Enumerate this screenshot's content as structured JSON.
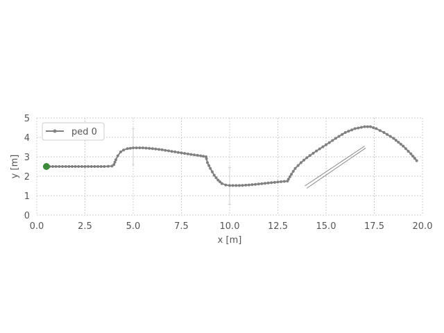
{
  "chart_data": {
    "type": "line",
    "title": "",
    "xlabel": "x [m]",
    "ylabel": "y [m]",
    "xlim": [
      0.0,
      20.0
    ],
    "ylim": [
      0,
      5
    ],
    "xticks": [
      "0.0",
      "2.5",
      "5.0",
      "7.5",
      "10.0",
      "12.5",
      "15.0",
      "17.5",
      "20.0"
    ],
    "yticks": [
      "0",
      "1",
      "2",
      "3",
      "4",
      "5"
    ],
    "grid": true,
    "legend_position": "top-left",
    "colors": {
      "series": "#808080",
      "start_marker": "#3a8c3a",
      "grid": "#cccccc",
      "obstacle": "#888888"
    },
    "series": [
      {
        "name": "ped 0",
        "color": "#808080",
        "points": [
          [
            0.5,
            2.5
          ],
          [
            1.0,
            2.5
          ],
          [
            1.5,
            2.5
          ],
          [
            2.0,
            2.5
          ],
          [
            2.5,
            2.5
          ],
          [
            3.0,
            2.5
          ],
          [
            3.5,
            2.5
          ],
          [
            3.9,
            2.52
          ],
          [
            4.0,
            2.6
          ],
          [
            4.1,
            2.85
          ],
          [
            4.2,
            3.05
          ],
          [
            4.35,
            3.25
          ],
          [
            4.5,
            3.35
          ],
          [
            4.7,
            3.42
          ],
          [
            5.0,
            3.46
          ],
          [
            5.5,
            3.46
          ],
          [
            6.0,
            3.42
          ],
          [
            6.5,
            3.36
          ],
          [
            7.0,
            3.28
          ],
          [
            7.5,
            3.2
          ],
          [
            8.0,
            3.12
          ],
          [
            8.5,
            3.05
          ],
          [
            8.78,
            3.0
          ],
          [
            8.8,
            2.9
          ],
          [
            8.85,
            2.7
          ],
          [
            9.0,
            2.4
          ],
          [
            9.2,
            2.05
          ],
          [
            9.4,
            1.8
          ],
          [
            9.6,
            1.62
          ],
          [
            9.8,
            1.55
          ],
          [
            10.0,
            1.52
          ],
          [
            10.5,
            1.52
          ],
          [
            11.0,
            1.55
          ],
          [
            11.5,
            1.6
          ],
          [
            12.0,
            1.65
          ],
          [
            12.5,
            1.7
          ],
          [
            13.0,
            1.75
          ],
          [
            13.05,
            1.85
          ],
          [
            13.2,
            2.1
          ],
          [
            13.4,
            2.4
          ],
          [
            13.7,
            2.7
          ],
          [
            14.0,
            2.95
          ],
          [
            14.5,
            3.3
          ],
          [
            15.0,
            3.62
          ],
          [
            15.5,
            3.95
          ],
          [
            16.0,
            4.25
          ],
          [
            16.5,
            4.45
          ],
          [
            17.0,
            4.55
          ],
          [
            17.3,
            4.55
          ],
          [
            17.6,
            4.45
          ],
          [
            18.0,
            4.25
          ],
          [
            18.5,
            3.95
          ],
          [
            19.0,
            3.55
          ],
          [
            19.4,
            3.15
          ],
          [
            19.7,
            2.8
          ]
        ]
      }
    ],
    "start_point": {
      "x": 0.5,
      "y": 2.5
    },
    "error_bars": [
      {
        "x": 5.0,
        "y_low": 2.6,
        "y_high": 4.45
      },
      {
        "x": 10.0,
        "y_low": 0.55,
        "y_high": 2.45
      }
    ],
    "obstacles": [
      {
        "type": "line",
        "from": [
          13.9,
          1.5
        ],
        "to": [
          17.0,
          3.55
        ]
      },
      {
        "type": "line",
        "from": [
          14.0,
          1.38
        ],
        "to": [
          17.05,
          3.45
        ]
      }
    ]
  }
}
